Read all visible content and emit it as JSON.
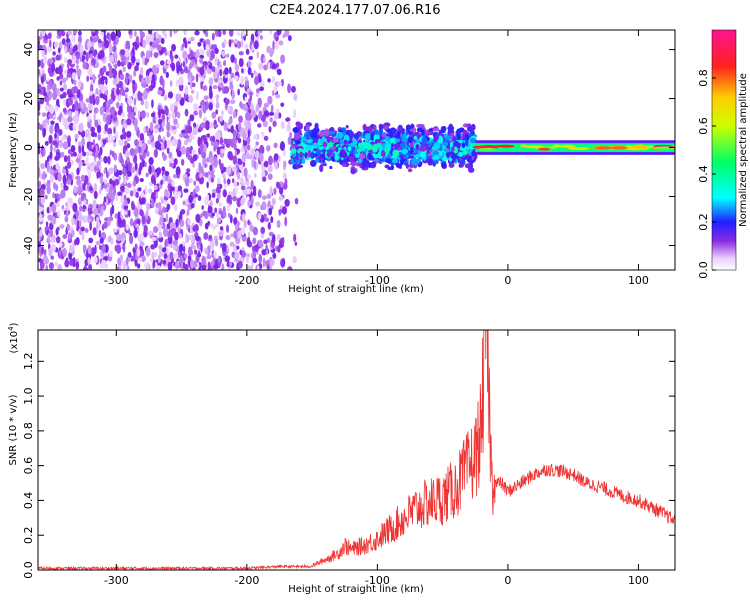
{
  "figure": {
    "title": "C2E4.2024.177.07.06.R16"
  },
  "chart_data": [
    {
      "type": "heatmap",
      "xlabel": "Height of straight line (km)",
      "ylabel": "Frequency (Hz)",
      "xlim": [
        -360,
        128
      ],
      "ylim": [
        -50,
        48
      ],
      "x_ticks": [
        -300,
        -200,
        -100,
        0,
        100
      ],
      "y_ticks": [
        -40,
        -20,
        0,
        20,
        40
      ],
      "colorbar": {
        "label": "Normalized spectral amplitude",
        "range": [
          0,
          1
        ],
        "ticks": [
          0.0,
          0.2,
          0.4,
          0.6,
          0.8
        ]
      },
      "regions": [
        {
          "x": [
            -360,
            -165
          ],
          "y": [
            -50,
            48
          ],
          "level": 0.2,
          "note_visible": false
        },
        {
          "x": [
            -165,
            -25
          ],
          "y": [
            -10,
            10
          ],
          "level": 0.35,
          "note_visible": false
        },
        {
          "x": [
            -25,
            128
          ],
          "y": [
            -2,
            2
          ],
          "level": 0.7,
          "note_visible": false
        }
      ]
    },
    {
      "type": "line",
      "xlabel": "Height of straight line (km)",
      "ylabel": "SNR (10 * v/v)",
      "multiplier_label": "(x10",
      "multiplier_exp": "4",
      "multiplier_close": ")",
      "xlim": [
        -360,
        128
      ],
      "ylim": [
        0,
        1.38
      ],
      "x_ticks": [
        -300,
        -200,
        -100,
        0,
        100
      ],
      "y_ticks": [
        0.0,
        0.2,
        0.4,
        0.6,
        0.8,
        1.0,
        1.2
      ],
      "color": "#ee3333",
      "series": [
        {
          "x": [
            -360,
            -300,
            -250,
            -200,
            -175,
            -150,
            -140,
            -130,
            -125,
            -120,
            -110,
            -100,
            -90,
            -80,
            -70,
            -60,
            -50,
            -40,
            -35,
            -30,
            -25,
            -20,
            -17,
            -15,
            -12,
            -10,
            -5,
            0,
            10,
            20,
            30,
            40,
            50,
            60,
            70,
            80,
            90,
            100,
            110,
            120,
            128
          ],
          "values": [
            0.01,
            0.01,
            0.01,
            0.01,
            0.02,
            0.02,
            0.05,
            0.08,
            0.12,
            0.1,
            0.12,
            0.15,
            0.2,
            0.25,
            0.3,
            0.33,
            0.35,
            0.4,
            0.45,
            0.5,
            0.55,
            0.7,
            1.35,
            0.9,
            0.4,
            0.5,
            0.5,
            0.45,
            0.5,
            0.55,
            0.58,
            0.57,
            0.55,
            0.5,
            0.48,
            0.45,
            0.42,
            0.4,
            0.36,
            0.32,
            0.28
          ]
        }
      ]
    }
  ]
}
